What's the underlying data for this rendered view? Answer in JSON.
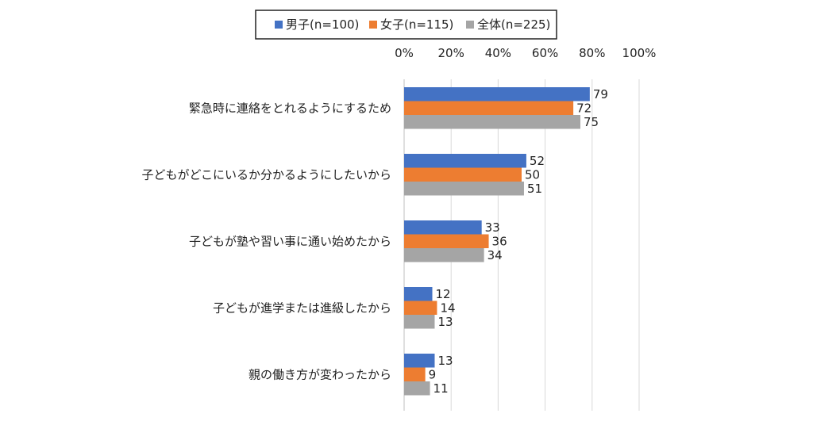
{
  "chart_data": {
    "type": "bar",
    "orientation": "horizontal",
    "categories": [
      "緊急時に連絡をとれるようにするため",
      "子どもがどこにいるか分かるようにしたいから",
      "子どもが塾や習い事に通い始めたから",
      "子どもが進学または進級したから",
      "親の働き方が変わったから"
    ],
    "series": [
      {
        "name": "男子(n=100)",
        "color": "#4472C4",
        "values": [
          79,
          52,
          33,
          12,
          13
        ]
      },
      {
        "name": "女子(n=115)",
        "color": "#ED7D31",
        "values": [
          72,
          50,
          36,
          14,
          9
        ]
      },
      {
        "name": "全体(n=225)",
        "color": "#A5A5A5",
        "values": [
          75,
          51,
          34,
          13,
          11
        ]
      }
    ],
    "xaxis": {
      "position": "top",
      "ticks": [
        "0%",
        "20%",
        "40%",
        "60%",
        "80%",
        "100%"
      ],
      "tick_values": [
        0,
        20,
        40,
        60,
        80,
        100
      ]
    },
    "xlim": [
      0,
      100
    ],
    "grid": true,
    "legend": "top"
  }
}
